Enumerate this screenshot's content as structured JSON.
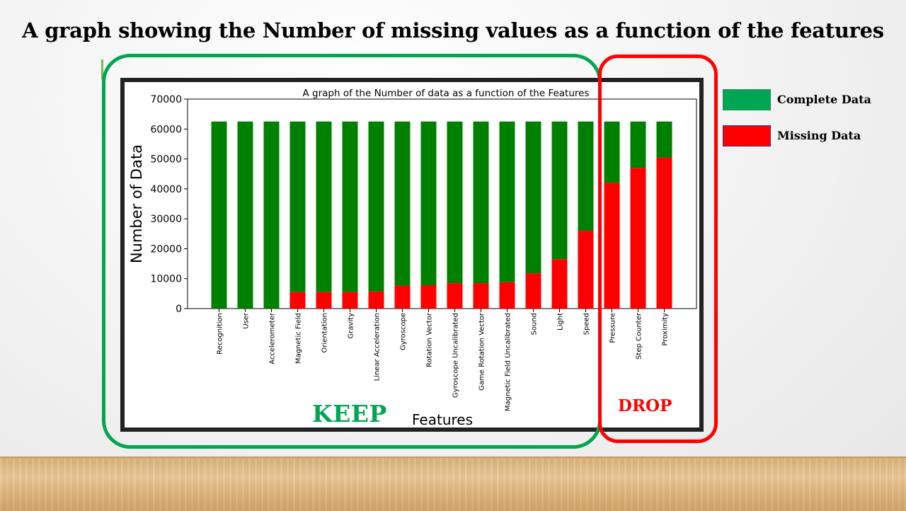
{
  "slide": {
    "title": "A graph showing the Number of missing values as a function of the features",
    "keep_label": "KEEP",
    "drop_label": "DROP"
  },
  "legend": [
    {
      "label": "Complete Data",
      "color": "#00a651",
      "border": "#2e8b57"
    },
    {
      "label": "Missing Data",
      "color": "#ff0000",
      "border": "#2a3a8a"
    }
  ],
  "chart_data": {
    "type": "bar",
    "stacked": true,
    "title": "A graph of the Number of data as a function of the Features",
    "xlabel": "Features",
    "ylabel": "Number of Data",
    "ylim": [
      0,
      70000
    ],
    "yticks": [
      0,
      10000,
      20000,
      30000,
      40000,
      50000,
      60000,
      70000
    ],
    "categories": [
      "Recognition",
      "User",
      "Accelerometer",
      "Magnetic Field",
      "Orientation",
      "Gravity",
      "Linear Acceleration",
      "Gyroscope",
      "Rotation Vector",
      "Gyroscope Uncalibrated",
      "Game Rotation Vector",
      "Magnetic Field Uncalibrated",
      "Sound",
      "Light",
      "Speed",
      "Pressure",
      "Step Counter",
      "Proximity"
    ],
    "series": [
      {
        "color": "#ff0000",
        "values": [
          0,
          0,
          0,
          5500,
          5500,
          5500,
          5700,
          7700,
          7800,
          8500,
          8500,
          8800,
          11800,
          16500,
          26000,
          42000,
          47000,
          50500
        ]
      },
      {
        "color": "#008000",
        "values": [
          62500,
          62500,
          62500,
          57000,
          57000,
          57000,
          56800,
          54800,
          54700,
          54000,
          54000,
          53700,
          50700,
          46000,
          36500,
          20500,
          15500,
          12000
        ]
      }
    ],
    "grid": false,
    "legend_position": "right-outside"
  }
}
